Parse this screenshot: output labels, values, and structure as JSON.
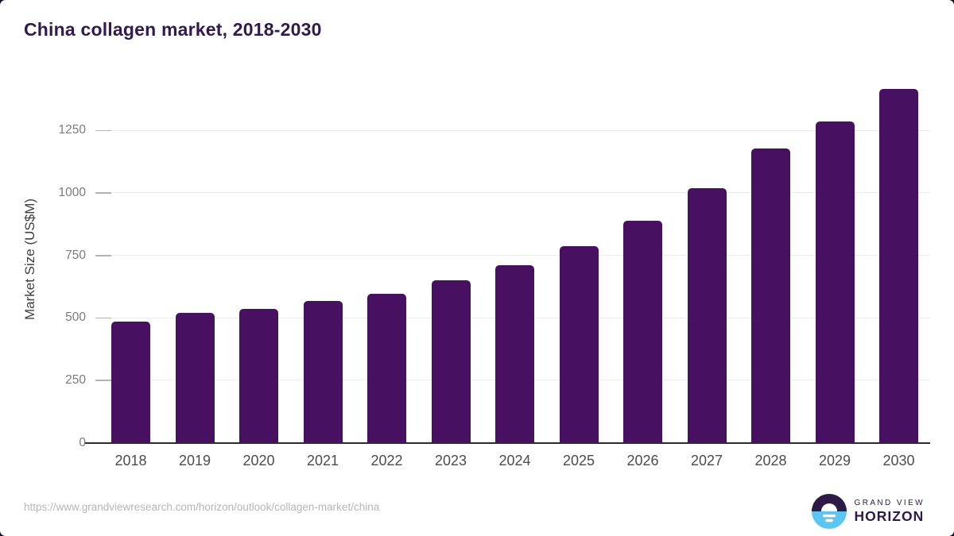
{
  "page": {
    "title": "China collagen market, 2018-2030",
    "source_url": "https://www.grandviewresearch.com/horizon/outlook/collagen-market/china"
  },
  "brand": {
    "line1": "GRAND VIEW",
    "line2": "HORIZON",
    "icon": "horizon-sunrise-icon",
    "color_dark": "#2e1a47",
    "color_blue": "#5bc6f3"
  },
  "chart_data": {
    "type": "bar",
    "title": "China collagen market, 2018-2030",
    "xlabel": "",
    "ylabel": "Market Size (US$M)",
    "categories": [
      "2018",
      "2019",
      "2020",
      "2021",
      "2022",
      "2023",
      "2024",
      "2025",
      "2026",
      "2027",
      "2028",
      "2029",
      "2030"
    ],
    "values": [
      485,
      523,
      537,
      568,
      599,
      652,
      711,
      787,
      890,
      1019,
      1181,
      1288,
      1418
    ],
    "yticks": [
      0,
      250,
      500,
      750,
      1000,
      1250
    ],
    "ylim": [
      0,
      1475
    ],
    "grid": true,
    "legend": false,
    "bar_color": "#471060",
    "gridline_color": "#ececec",
    "axis_line_color": "#2c2c2c"
  }
}
